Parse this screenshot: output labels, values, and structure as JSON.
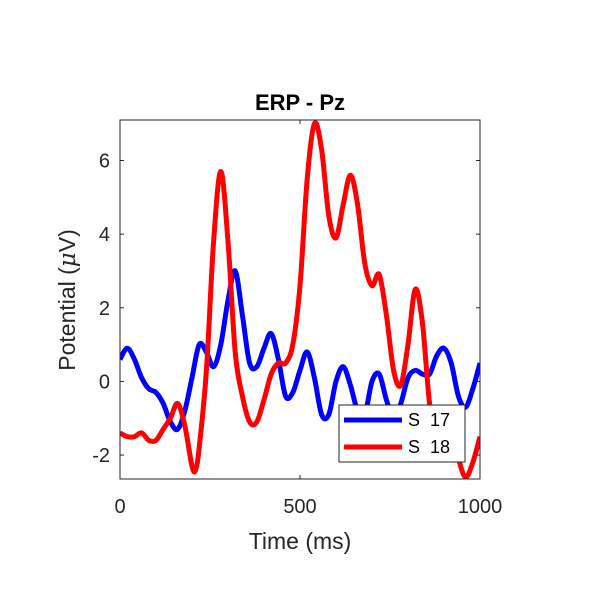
{
  "chart_data": {
    "type": "line",
    "title": "ERP - Pz",
    "xlabel": "Time (ms)",
    "ylabel_prefix": "Potential (",
    "ylabel_mu": "μ",
    "ylabel_suffix": "V)",
    "xlim": [
      0,
      1000
    ],
    "ylim": [
      -2.65,
      7.1
    ],
    "xticks": [
      0,
      500,
      1000
    ],
    "xtick_labels": [
      "0",
      "500",
      "1000"
    ],
    "yticks": [
      -2,
      0,
      2,
      4,
      6
    ],
    "ytick_labels": [
      "-2",
      "0",
      "2",
      "4",
      "6"
    ],
    "grid": false,
    "legend_position": "bottom-right",
    "series": [
      {
        "name": "S  17",
        "color": "#0000ff",
        "x": [
          0,
          20,
          40,
          60,
          80,
          100,
          120,
          140,
          160,
          180,
          200,
          220,
          240,
          260,
          280,
          300,
          320,
          340,
          360,
          380,
          400,
          420,
          440,
          460,
          480,
          500,
          520,
          540,
          560,
          580,
          600,
          620,
          640,
          660,
          680,
          700,
          720,
          740,
          760,
          780,
          800,
          820,
          840,
          860,
          880,
          900,
          920,
          940,
          960,
          980,
          1000
        ],
        "y": [
          0.6,
          0.9,
          0.6,
          0.1,
          -0.2,
          -0.3,
          -0.6,
          -1.1,
          -1.3,
          -0.8,
          0.1,
          1.0,
          0.8,
          0.4,
          1.0,
          2.2,
          3.0,
          1.8,
          0.5,
          0.4,
          0.9,
          1.3,
          0.6,
          -0.4,
          -0.3,
          0.3,
          0.8,
          0.1,
          -0.9,
          -0.9,
          0.0,
          0.4,
          -0.1,
          -0.8,
          -0.9,
          0.0,
          0.2,
          -0.5,
          -1.0,
          -0.6,
          0.1,
          0.3,
          0.2,
          0.2,
          0.7,
          0.9,
          0.5,
          -0.4,
          -0.7,
          -0.2,
          0.5
        ]
      },
      {
        "name": "S  18",
        "color": "#ff0000",
        "x": [
          0,
          20,
          40,
          60,
          80,
          100,
          120,
          140,
          160,
          180,
          200,
          210,
          220,
          240,
          260,
          280,
          300,
          320,
          340,
          360,
          380,
          400,
          420,
          440,
          460,
          480,
          500,
          520,
          540,
          560,
          580,
          600,
          620,
          640,
          660,
          680,
          700,
          720,
          740,
          760,
          780,
          800,
          820,
          840,
          860,
          880,
          900,
          920,
          940,
          960,
          980,
          1000
        ],
        "y": [
          -1.4,
          -1.5,
          -1.5,
          -1.4,
          -1.6,
          -1.6,
          -1.3,
          -1.0,
          -0.6,
          -1.2,
          -2.3,
          -2.4,
          -1.8,
          0.3,
          3.8,
          5.7,
          3.8,
          0.8,
          -0.4,
          -1.1,
          -1.1,
          -0.5,
          0.2,
          0.5,
          0.5,
          1.0,
          2.6,
          5.5,
          7.0,
          6.3,
          4.5,
          3.9,
          4.8,
          5.6,
          4.8,
          3.2,
          2.6,
          2.9,
          1.8,
          0.3,
          -0.1,
          1.0,
          2.5,
          1.6,
          -0.6,
          -1.5,
          -1.2,
          -1.3,
          -2.1,
          -2.6,
          -2.2,
          -1.5
        ]
      }
    ]
  }
}
